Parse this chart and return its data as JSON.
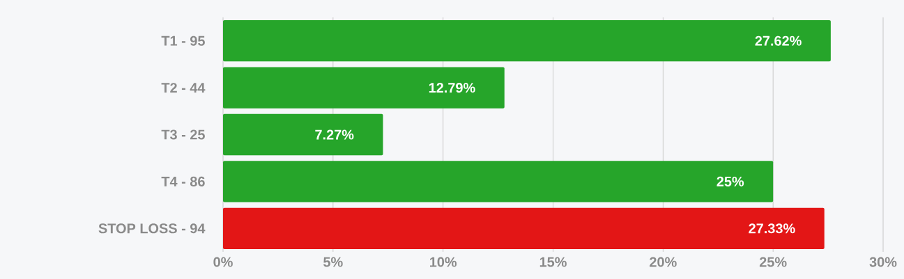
{
  "chart_data": {
    "type": "bar",
    "orientation": "horizontal",
    "categories": [
      "T1 -  95",
      "T2 -  44",
      "T3 -  25",
      "T4 -  86",
      "STOP LOSS -  94"
    ],
    "values": [
      27.62,
      12.79,
      7.27,
      25,
      27.33
    ],
    "colors": [
      "#26a52a",
      "#26a52a",
      "#26a52a",
      "#26a52a",
      "#e31616"
    ],
    "value_labels": [
      "27.62%",
      "12.79%",
      "7.27%",
      "25%",
      "27.33%"
    ],
    "xlim": [
      0,
      30
    ],
    "xticks": [
      {
        "value": 0,
        "label": "0%"
      },
      {
        "value": 5,
        "label": "5%"
      },
      {
        "value": 10,
        "label": "10%"
      },
      {
        "value": 15,
        "label": "15%"
      },
      {
        "value": 20,
        "label": "20%"
      },
      {
        "value": 25,
        "label": "25%"
      },
      {
        "value": 30,
        "label": "30%"
      }
    ],
    "grid": "x"
  }
}
